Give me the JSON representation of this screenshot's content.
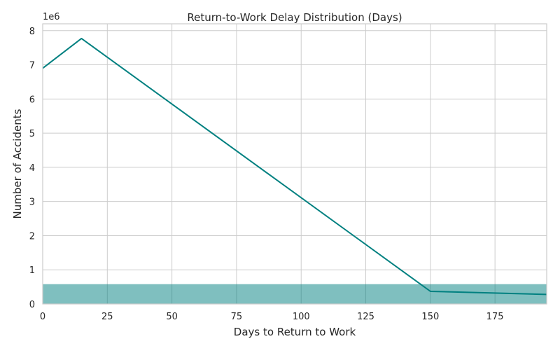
{
  "chart_data": {
    "type": "line",
    "title": "Return-to-Work Delay Distribution (Days)",
    "xlabel": "Days to Return to Work",
    "ylabel": "Number of Accidents",
    "y_offset_label": "1e6",
    "xlim": [
      0,
      195
    ],
    "ylim": [
      0,
      8.2
    ],
    "y_scale_note": "values in millions",
    "xticks": [
      0,
      25,
      50,
      75,
      100,
      125,
      150,
      175
    ],
    "yticks": [
      0,
      1,
      2,
      3,
      4,
      5,
      6,
      7,
      8
    ],
    "grid": true,
    "series": [
      {
        "color": "#008080",
        "x": [
          0,
          15,
          150,
          195
        ],
        "y": [
          6.9,
          7.77,
          0.37,
          0.28
        ]
      }
    ],
    "band": {
      "y_from": 0,
      "y_to": 0.58,
      "color": "#008080",
      "opacity": 0.5
    }
  }
}
